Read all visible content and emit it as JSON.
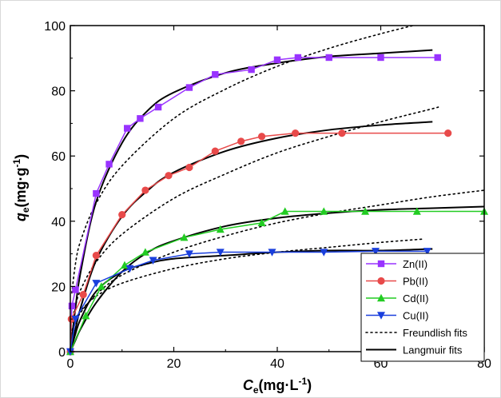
{
  "chart_data": {
    "type": "line",
    "title": "",
    "xlabel": {
      "main": "C",
      "sub": "e",
      "unit": "(mg·L",
      "sup": "-1",
      "close": ")"
    },
    "ylabel": {
      "main": "q",
      "sub": "e",
      "unit": "(mg·g",
      "sup": "-1",
      "close": ")"
    },
    "xlim": [
      0,
      80
    ],
    "ylim": [
      0,
      100
    ],
    "xticks": [
      0,
      20,
      40,
      60,
      80
    ],
    "yticks": [
      0,
      20,
      40,
      60,
      80,
      100
    ],
    "grid": false,
    "legend_position": "bottom-right",
    "series": [
      {
        "name": "Zn(II)",
        "color": "#9933ff",
        "marker": "square",
        "x": [
          0,
          0.3,
          1,
          5,
          7.5,
          11,
          13.5,
          17,
          23,
          28,
          35,
          40,
          44,
          50,
          60,
          71
        ],
        "y": [
          0,
          14,
          19,
          48.5,
          57.5,
          68.5,
          71.5,
          75,
          81,
          85,
          86.5,
          89.5,
          90.2,
          90.2,
          90.2,
          90.2
        ]
      },
      {
        "name": "Pb(II)",
        "color": "#e84a4a",
        "marker": "circle",
        "x": [
          0,
          0.2,
          2.5,
          5,
          10,
          14.5,
          19,
          23,
          28,
          33,
          37,
          43.5,
          52.5,
          73
        ],
        "y": [
          0,
          10,
          17.5,
          29.5,
          42,
          49.5,
          54,
          56.5,
          61.5,
          64.5,
          66,
          67,
          67,
          67
        ]
      },
      {
        "name": "Cd(II)",
        "color": "#22cc22",
        "marker": "triangle-up",
        "x": [
          0,
          3,
          6,
          10.5,
          14.5,
          22,
          29,
          37,
          41.5,
          49,
          57,
          67,
          80
        ],
        "y": [
          0,
          11,
          20,
          26.5,
          30.5,
          35,
          37.5,
          39.5,
          43,
          43,
          43,
          43,
          43
        ]
      },
      {
        "name": "Cu(II)",
        "color": "#1a3fdd",
        "marker": "triangle-down",
        "x": [
          0,
          1,
          5,
          11.5,
          16,
          23,
          29,
          39,
          49,
          59,
          69
        ],
        "y": [
          0,
          10,
          21,
          25.5,
          28,
          30,
          30.5,
          30.5,
          30.5,
          30.8,
          30.8
        ]
      }
    ],
    "freundlish_fits": {
      "name": "Freundlish fits",
      "color": "#000000",
      "style": "dotted",
      "curves": [
        {
          "x": [
            0.3,
            1,
            2,
            5,
            10,
            20,
            30,
            40,
            50,
            60,
            70,
            72
          ],
          "y": [
            18,
            27,
            34,
            45.5,
            57,
            71.5,
            80.5,
            87.5,
            93,
            97.5,
            101.5,
            102.5
          ]
        },
        {
          "x": [
            0.3,
            1,
            2,
            5,
            10,
            20,
            30,
            40,
            50,
            60,
            70,
            71
          ],
          "y": [
            9,
            14,
            19,
            27.5,
            36,
            47,
            54.5,
            61,
            66,
            70.5,
            74.5,
            75
          ]
        },
        {
          "x": [
            0.3,
            1,
            2,
            5,
            10,
            20,
            30,
            40,
            50,
            60,
            70,
            80
          ],
          "y": [
            5.5,
            9,
            12,
            17.5,
            23.5,
            30.5,
            35.5,
            39.5,
            42.5,
            45,
            47.5,
            49.5
          ]
        },
        {
          "x": [
            0.3,
            1,
            2,
            5,
            10,
            20,
            30,
            40,
            50,
            60,
            68
          ],
          "y": [
            6.5,
            10,
            12.5,
            17,
            21,
            25.5,
            28.5,
            30.5,
            32,
            33.5,
            34.5
          ]
        }
      ]
    },
    "langmuir_fits": {
      "name": "Langmuir fits",
      "color": "#000000",
      "style": "solid",
      "curves": [
        {
          "x": [
            0,
            1,
            2,
            5,
            10,
            15,
            20,
            30,
            40,
            50,
            60,
            70
          ],
          "y": [
            0,
            13.5,
            24.5,
            46,
            64,
            74,
            79.5,
            85.5,
            88.5,
            90.5,
            91.5,
            92.5
          ]
        },
        {
          "x": [
            0,
            1,
            2,
            5,
            10,
            15,
            20,
            30,
            40,
            50,
            60,
            70
          ],
          "y": [
            0,
            7,
            13.5,
            28,
            41.5,
            49.5,
            55,
            61.5,
            65.5,
            68,
            69.5,
            70.5
          ]
        },
        {
          "x": [
            0,
            1,
            2,
            5,
            10,
            15,
            20,
            30,
            40,
            50,
            60,
            70,
            80
          ],
          "y": [
            0,
            3.5,
            7,
            15,
            24.5,
            30.5,
            34,
            38.5,
            41,
            42.5,
            43.5,
            44,
            44.5
          ]
        },
        {
          "x": [
            0,
            1,
            2,
            5,
            10,
            15,
            20,
            30,
            40,
            50,
            60,
            70
          ],
          "y": [
            0,
            5.5,
            10,
            18.5,
            24.5,
            27,
            28.5,
            29.5,
            30.5,
            31,
            31,
            31.5
          ]
        }
      ]
    }
  }
}
